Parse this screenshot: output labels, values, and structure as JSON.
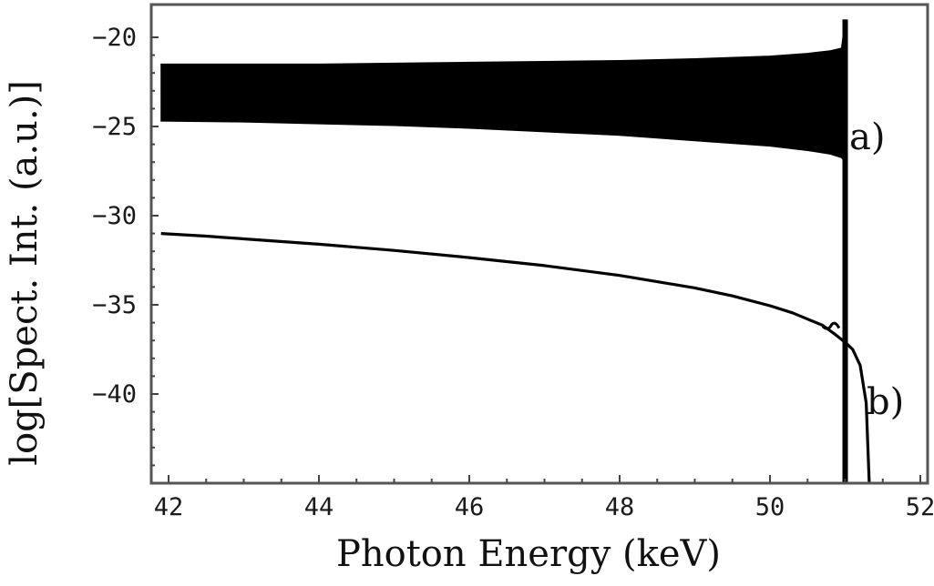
{
  "chart_data": {
    "type": "line",
    "title": "",
    "xlabel": "Photon Energy (keV)",
    "ylabel": "log[Spect. Int. (a.u.)]",
    "xlim": [
      41.77,
      52.1
    ],
    "ylim": [
      -45,
      -18.1
    ],
    "xticks": [
      42,
      44,
      46,
      48,
      50,
      52
    ],
    "xtick_labels": [
      "42",
      "44",
      "46",
      "48",
      "50",
      "52"
    ],
    "yticks": [
      -20,
      -25,
      -30,
      -35,
      -40
    ],
    "ytick_labels": [
      "-20",
      "-25",
      "-30",
      "-35",
      "-40"
    ],
    "grid": false,
    "legend": "none",
    "annotations": [
      {
        "text": "a)",
        "x": 51.6,
        "y": -26.3
      },
      {
        "text": "b)",
        "x": 51.95,
        "y": -40.4
      }
    ],
    "series": [
      {
        "name": "a)",
        "style": "dense oscillating band (filled envelope) with sharp spike at cutoff",
        "x": [
          41.9,
          43,
          44,
          45,
          46,
          47,
          48,
          49,
          50,
          50.5,
          50.8,
          50.95,
          51.0
        ],
        "upper": [
          -21.5,
          -21.5,
          -21.5,
          -21.45,
          -21.4,
          -21.35,
          -21.3,
          -21.2,
          -21.05,
          -20.9,
          -20.75,
          -20.6,
          -19.0
        ],
        "lower": [
          -24.7,
          -24.75,
          -24.85,
          -24.95,
          -25.1,
          -25.3,
          -25.5,
          -25.8,
          -26.1,
          -26.35,
          -26.55,
          -26.75,
          -27.0
        ],
        "cutoff_keV": 51.0
      },
      {
        "name": "b)",
        "style": "smooth line",
        "x": [
          41.9,
          42.5,
          43,
          44,
          45,
          46,
          47,
          48,
          49,
          49.5,
          50,
          50.3,
          50.5,
          50.7,
          50.85,
          51.0,
          51.1,
          51.2,
          51.28,
          51.32
        ],
        "y": [
          -31.0,
          -31.15,
          -31.3,
          -31.6,
          -31.95,
          -32.35,
          -32.8,
          -33.35,
          -34.05,
          -34.5,
          -35.05,
          -35.45,
          -35.8,
          -36.15,
          -36.6,
          -37.1,
          -37.5,
          -38.4,
          -40.5,
          -45.0
        ]
      }
    ]
  }
}
